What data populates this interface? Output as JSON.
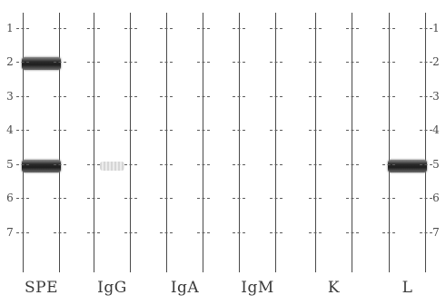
{
  "lanes": [
    {
      "label": "SPE"
    },
    {
      "label": "IgG"
    },
    {
      "label": "IgA"
    },
    {
      "label": "IgM"
    },
    {
      "label": "K"
    },
    {
      "label": "L"
    }
  ],
  "tick_numbers": [
    "1",
    "2",
    "3",
    "4",
    "5",
    "6",
    "7"
  ],
  "bands": [
    {
      "lane_index": 0,
      "at_tick": 2,
      "intensity": "strong"
    },
    {
      "lane_index": 0,
      "at_tick": 5,
      "intensity": "strong"
    },
    {
      "lane_index": 1,
      "at_tick": 5,
      "intensity": "faint"
    },
    {
      "lane_index": 5,
      "at_tick": 5,
      "intensity": "strong"
    }
  ]
}
